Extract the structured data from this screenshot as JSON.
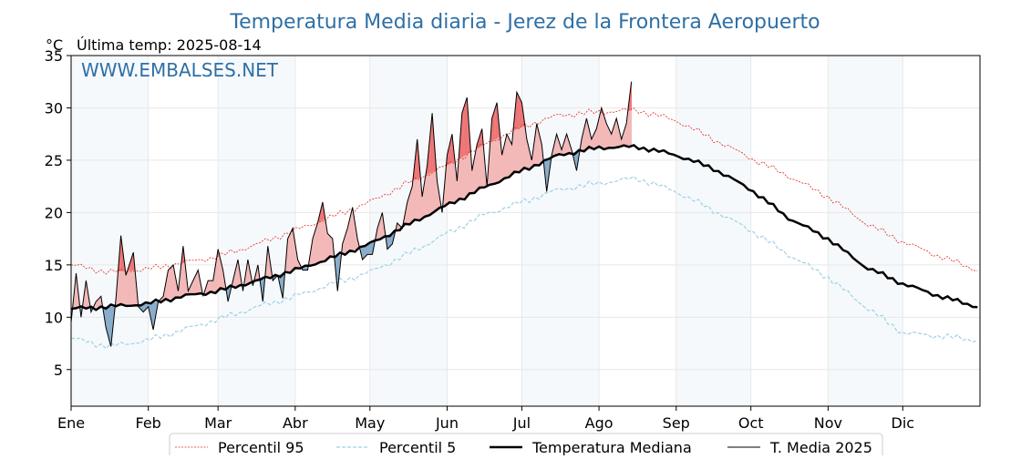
{
  "chart_data": {
    "type": "line",
    "title": "Temperatura Media diaria - Jerez de la Frontera Aeropuerto",
    "unit_label": "°C",
    "last_temp_label": "Última temp: 2025-08-14",
    "watermark": "WWW.EMBALSES.NET",
    "ylim": [
      1.5,
      35
    ],
    "y_ticks": [
      5,
      10,
      15,
      20,
      25,
      30,
      35
    ],
    "x_ticks": [
      {
        "label": "Ene",
        "day": 0
      },
      {
        "label": "Feb",
        "day": 31
      },
      {
        "label": "Mar",
        "day": 59
      },
      {
        "label": "Abr",
        "day": 90
      },
      {
        "label": "May",
        "day": 120
      },
      {
        "label": "Jun",
        "day": 151
      },
      {
        "label": "Jul",
        "day": 181
      },
      {
        "label": "Ago",
        "day": 212
      },
      {
        "label": "Sep",
        "day": 243
      },
      {
        "label": "Oct",
        "day": 273
      },
      {
        "label": "Nov",
        "day": 304
      },
      {
        "label": "Dic",
        "day": 334
      }
    ],
    "xlim": [
      0,
      365
    ],
    "grid": true,
    "legend_position": "bottom",
    "colors": {
      "p95": "#e8261e",
      "p5": "#9fd0e4",
      "median": "#000000",
      "current": "#000000",
      "above": "#f2b9b8",
      "above_strong": "#ee7373",
      "below": "#8aadcb",
      "band": "#dfeaf5"
    },
    "series": [
      {
        "name": "Percentil 95",
        "key": "p95",
        "days": [
          0,
          15,
          31,
          45,
          59,
          75,
          90,
          105,
          120,
          135,
          151,
          166,
          181,
          196,
          212,
          227,
          243,
          258,
          273,
          288,
          304,
          319,
          334,
          349,
          364
        ],
        "values": [
          15.0,
          14.3,
          14.6,
          15.2,
          15.8,
          17.0,
          18.3,
          19.6,
          21.0,
          22.8,
          24.5,
          26.5,
          28.2,
          29.3,
          29.6,
          29.8,
          28.8,
          27.0,
          25.2,
          23.5,
          21.5,
          19.0,
          17.2,
          15.8,
          14.5
        ]
      },
      {
        "name": "Percentil 5",
        "key": "p5",
        "days": [
          0,
          15,
          31,
          45,
          59,
          75,
          90,
          105,
          120,
          135,
          151,
          166,
          181,
          196,
          212,
          227,
          243,
          258,
          273,
          288,
          304,
          319,
          334,
          349,
          364
        ],
        "values": [
          8.0,
          7.2,
          7.8,
          8.8,
          9.8,
          11.0,
          12.0,
          13.2,
          14.3,
          16.0,
          18.0,
          19.8,
          21.0,
          22.2,
          22.8,
          23.3,
          22.0,
          20.2,
          18.3,
          16.0,
          13.8,
          11.0,
          8.5,
          8.2,
          7.8
        ]
      },
      {
        "name": "Temperatura Mediana",
        "key": "median",
        "days": [
          0,
          15,
          31,
          45,
          59,
          75,
          90,
          105,
          120,
          135,
          151,
          166,
          181,
          196,
          212,
          227,
          243,
          258,
          273,
          288,
          304,
          319,
          334,
          349,
          364
        ],
        "values": [
          10.8,
          11.0,
          11.3,
          12.0,
          12.5,
          13.5,
          14.5,
          15.7,
          17.0,
          18.8,
          20.7,
          22.4,
          24.0,
          25.5,
          26.2,
          26.3,
          25.5,
          24.2,
          22.2,
          19.5,
          17.5,
          14.8,
          13.2,
          12.0,
          11.0
        ]
      },
      {
        "name": "T. Media 2025",
        "key": "current",
        "days": [
          0,
          2,
          4,
          6,
          8,
          10,
          12,
          14,
          16,
          18,
          20,
          22,
          25,
          27,
          29,
          31,
          33,
          35,
          37,
          39,
          41,
          43,
          45,
          47,
          49,
          51,
          53,
          55,
          57,
          59,
          61,
          63,
          65,
          67,
          69,
          71,
          73,
          75,
          77,
          79,
          81,
          83,
          85,
          87,
          89,
          91,
          93,
          95,
          97,
          99,
          101,
          103,
          105,
          107,
          109,
          111,
          113,
          115,
          117,
          119,
          121,
          123,
          125,
          127,
          129,
          131,
          133,
          135,
          137,
          139,
          141,
          143,
          145,
          147,
          149,
          151,
          153,
          155,
          157,
          159,
          161,
          163,
          165,
          167,
          169,
          171,
          173,
          175,
          177,
          179,
          181,
          183,
          185,
          187,
          189,
          191,
          193,
          195,
          197,
          199,
          201,
          203,
          205,
          207,
          209,
          211,
          213,
          215,
          217,
          219,
          221,
          223,
          225
        ],
        "values": [
          9.5,
          14.2,
          10.0,
          13.5,
          10.5,
          11.5,
          12.0,
          9.0,
          7.2,
          11.8,
          17.8,
          14.0,
          16.2,
          11.0,
          10.5,
          11.0,
          8.8,
          11.5,
          12.0,
          14.5,
          15.0,
          12.5,
          16.8,
          12.5,
          13.5,
          14.5,
          12.0,
          13.5,
          13.5,
          16.5,
          14.5,
          11.5,
          13.5,
          15.5,
          12.5,
          15.5,
          13.0,
          15.0,
          11.5,
          16.8,
          13.5,
          14.0,
          11.8,
          17.5,
          18.5,
          15.5,
          14.5,
          14.5,
          17.5,
          19.0,
          21.0,
          18.0,
          17.5,
          12.5,
          17.0,
          18.5,
          20.5,
          17.5,
          15.5,
          16.0,
          16.0,
          18.5,
          20.0,
          16.5,
          17.0,
          19.0,
          18.5,
          21.0,
          22.5,
          27.0,
          21.5,
          24.5,
          29.5,
          23.0,
          20.0,
          25.5,
          27.5,
          23.0,
          29.5,
          31.0,
          24.0,
          26.5,
          28.0,
          22.5,
          29.0,
          30.5,
          25.5,
          27.5,
          26.5,
          31.5,
          30.5,
          27.0,
          25.0,
          28.5,
          26.5,
          22.0,
          25.5,
          27.5,
          26.0,
          27.5,
          26.0,
          24.0,
          27.0,
          29.0,
          27.0,
          28.0,
          30.0,
          28.5,
          27.5,
          29.0,
          27.0,
          28.5,
          32.5
        ]
      }
    ]
  }
}
